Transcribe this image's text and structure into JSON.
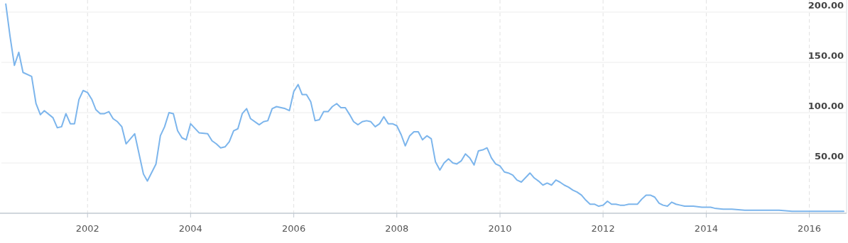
{
  "chart_data": {
    "type": "line",
    "x": [
      "2000-06",
      "2000-07",
      "2000-08",
      "2000-09",
      "2000-10",
      "2000-12",
      "2001-01",
      "2001-02",
      "2001-03",
      "2001-05",
      "2001-06",
      "2001-07",
      "2001-08",
      "2001-09",
      "2001-10",
      "2001-11",
      "2001-12",
      "2002-01",
      "2002-02",
      "2002-03",
      "2002-04",
      "2002-05",
      "2002-06",
      "2002-07",
      "2002-08",
      "2002-09",
      "2002-10",
      "2002-12",
      "2003-02",
      "2003-03",
      "2003-05",
      "2003-06",
      "2003-07",
      "2003-08",
      "2003-09",
      "2003-10",
      "2003-11",
      "2003-12",
      "2004-01",
      "2004-03",
      "2004-05",
      "2004-06",
      "2004-07",
      "2004-08",
      "2004-09",
      "2004-10",
      "2004-11",
      "2004-12",
      "2005-01",
      "2005-02",
      "2005-03",
      "2005-05",
      "2005-06",
      "2005-07",
      "2005-08",
      "2005-09",
      "2005-11",
      "2005-12",
      "2006-01",
      "2006-02",
      "2006-03",
      "2006-04",
      "2006-05",
      "2006-06",
      "2006-07",
      "2006-08",
      "2006-09",
      "2006-10",
      "2006-11",
      "2006-12",
      "2007-01",
      "2007-02",
      "2007-03",
      "2007-04",
      "2007-05",
      "2007-06",
      "2007-07",
      "2007-08",
      "2007-09",
      "2007-10",
      "2007-11",
      "2007-12",
      "2008-01",
      "2008-02",
      "2008-03",
      "2008-04",
      "2008-05",
      "2008-06",
      "2008-07",
      "2008-08",
      "2008-09",
      "2008-10",
      "2008-11",
      "2008-12",
      "2009-01",
      "2009-02",
      "2009-03",
      "2009-04",
      "2009-05",
      "2009-06",
      "2009-07",
      "2009-08",
      "2009-09",
      "2009-10",
      "2009-11",
      "2009-12",
      "2010-01",
      "2010-02",
      "2010-03",
      "2010-04",
      "2010-05",
      "2010-06",
      "2010-08",
      "2010-09",
      "2010-10",
      "2010-11",
      "2010-12",
      "2011-01",
      "2011-02",
      "2011-03",
      "2011-04",
      "2011-05",
      "2011-06",
      "2011-07",
      "2011-08",
      "2011-09",
      "2011-10",
      "2011-11",
      "2011-12",
      "2012-01",
      "2012-02",
      "2012-03",
      "2012-04",
      "2012-05",
      "2012-06",
      "2012-07",
      "2012-08",
      "2012-09",
      "2012-10",
      "2012-11",
      "2012-12",
      "2013-01",
      "2013-02",
      "2013-03",
      "2013-04",
      "2013-05",
      "2013-06",
      "2013-07",
      "2013-08",
      "2013-10",
      "2013-12",
      "2014-02",
      "2014-03",
      "2014-05",
      "2014-07",
      "2014-10",
      "2014-12",
      "2015-02",
      "2015-04",
      "2015-06",
      "2015-09",
      "2015-12",
      "2016-02",
      "2016-04",
      "2016-07",
      "2016-09"
    ],
    "series": [
      {
        "color": "#7cb5ec",
        "values": [
          208,
          176,
          147,
          160,
          140,
          136,
          109,
          98,
          102,
          95,
          85,
          86,
          99,
          89,
          89,
          113,
          122,
          120,
          113,
          103,
          99,
          99,
          101,
          94,
          91,
          86,
          69,
          79,
          39,
          32,
          49,
          77,
          86,
          100,
          99,
          82,
          75,
          73,
          89,
          80,
          79,
          72,
          69,
          65,
          66,
          71,
          82,
          84,
          99,
          104,
          94,
          88,
          91,
          92,
          104,
          106,
          104,
          102,
          121,
          128,
          118,
          118,
          111,
          92,
          93,
          101,
          101,
          106,
          109,
          105,
          105,
          98,
          91,
          88,
          91,
          92,
          91,
          86,
          89,
          96,
          89,
          89,
          87,
          78,
          67,
          77,
          81,
          81,
          73,
          77,
          74,
          51,
          43,
          50,
          54,
          50,
          49,
          52,
          59,
          55,
          48,
          62,
          63,
          65,
          55,
          49,
          47,
          41,
          40,
          38,
          33,
          31,
          40,
          35,
          32,
          28,
          30,
          28,
          33,
          31,
          28,
          26,
          23,
          21,
          18,
          13,
          9,
          9,
          7,
          8,
          12,
          9,
          9,
          8,
          8,
          9,
          9,
          9,
          14,
          18,
          18,
          16,
          10,
          8,
          7,
          11,
          9,
          8,
          7,
          7,
          6,
          6,
          5,
          4,
          4,
          3,
          3,
          3,
          3,
          3,
          2,
          2,
          2,
          2,
          2,
          2
        ]
      }
    ],
    "xlim": [
      "2000-05",
      "2016-09"
    ],
    "xticks": [
      "2002",
      "2004",
      "2006",
      "2008",
      "2010",
      "2012",
      "2014",
      "2016"
    ],
    "ylim": [
      0,
      212
    ],
    "yticks": [
      {
        "value": 50,
        "label": "50.00"
      },
      {
        "value": 100,
        "label": "100.00"
      },
      {
        "value": 150,
        "label": "150.00"
      },
      {
        "value": 200,
        "label": "200.00"
      }
    ],
    "grid": true,
    "line_style": "solid",
    "marker": "none"
  }
}
